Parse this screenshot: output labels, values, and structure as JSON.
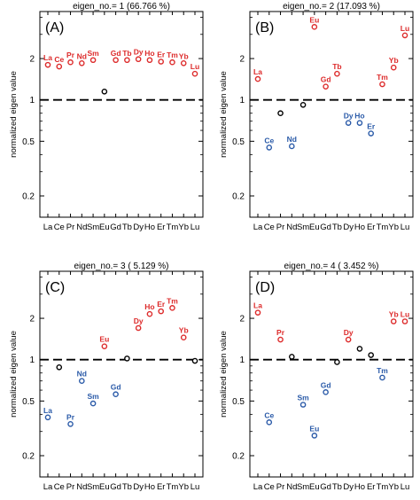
{
  "colors": {
    "positive": "#dd2b2b",
    "negative": "#2a5aa8",
    "near_one": "#000000",
    "axis": "#000000"
  },
  "shared_axis": {
    "xticks": [
      "La",
      "Ce",
      "Pr",
      "Nd",
      "Sm",
      "Eu",
      "Gd",
      "Tb",
      "Dy",
      "Ho",
      "Er",
      "Tm",
      "Yb",
      "Lu"
    ],
    "ylabel": "normalized eigen value",
    "yscale": "log",
    "ylim": [
      0.14,
      4.4
    ],
    "ytick_labels": [
      "0.2",
      "0.5",
      "1",
      "2"
    ],
    "ytick_values": [
      0.2,
      0.5,
      1,
      2
    ],
    "reference_line": 1
  },
  "chart_data": [
    {
      "type": "scatter",
      "panel_label": "(A)",
      "title": "eigen_no.= 1 (66.766 %)",
      "yscale": "log",
      "points": [
        {
          "x": "La",
          "y": 1.8,
          "label": "La",
          "color": "red"
        },
        {
          "x": "Ce",
          "y": 1.75,
          "label": "Ce",
          "color": "red"
        },
        {
          "x": "Pr",
          "y": 1.88,
          "label": "Pr",
          "color": "red"
        },
        {
          "x": "Nd",
          "y": 1.85,
          "label": "Nd",
          "color": "red"
        },
        {
          "x": "Sm",
          "y": 1.95,
          "label": "Sm",
          "color": "red"
        },
        {
          "x": "Eu",
          "y": 1.15,
          "label": "",
          "color": "black"
        },
        {
          "x": "Gd",
          "y": 1.95,
          "label": "Gd",
          "color": "red"
        },
        {
          "x": "Tb",
          "y": 1.95,
          "label": "Tb",
          "color": "red"
        },
        {
          "x": "Dy",
          "y": 1.98,
          "label": "Dy",
          "color": "red"
        },
        {
          "x": "Ho",
          "y": 1.95,
          "label": "Ho",
          "color": "red"
        },
        {
          "x": "Er",
          "y": 1.9,
          "label": "Er",
          "color": "red"
        },
        {
          "x": "Tm",
          "y": 1.88,
          "label": "Tm",
          "color": "red"
        },
        {
          "x": "Yb",
          "y": 1.85,
          "label": "Yb",
          "color": "red"
        },
        {
          "x": "Lu",
          "y": 1.55,
          "label": "Lu",
          "color": "red"
        }
      ]
    },
    {
      "type": "scatter",
      "panel_label": "(B)",
      "title": "eigen_no.= 2 (17.093 %)",
      "yscale": "log",
      "points": [
        {
          "x": "La",
          "y": 1.42,
          "label": "La",
          "color": "red"
        },
        {
          "x": "Ce",
          "y": 0.45,
          "label": "Ce",
          "color": "blue"
        },
        {
          "x": "Pr",
          "y": 0.8,
          "label": "",
          "color": "black"
        },
        {
          "x": "Nd",
          "y": 0.46,
          "label": "Nd",
          "color": "blue"
        },
        {
          "x": "Sm",
          "y": 0.92,
          "label": "",
          "color": "black"
        },
        {
          "x": "Eu",
          "y": 3.4,
          "label": "Eu",
          "color": "red"
        },
        {
          "x": "Gd",
          "y": 1.25,
          "label": "Gd",
          "color": "red"
        },
        {
          "x": "Tb",
          "y": 1.55,
          "label": "Tb",
          "color": "red"
        },
        {
          "x": "Dy",
          "y": 0.68,
          "label": "Dy",
          "color": "blue"
        },
        {
          "x": "Ho",
          "y": 0.68,
          "label": "Ho",
          "color": "blue"
        },
        {
          "x": "Er",
          "y": 0.57,
          "label": "Er",
          "color": "blue"
        },
        {
          "x": "Tm",
          "y": 1.3,
          "label": "Tm",
          "color": "red"
        },
        {
          "x": "Yb",
          "y": 1.72,
          "label": "Yb",
          "color": "red"
        },
        {
          "x": "Lu",
          "y": 2.95,
          "label": "Lu",
          "color": "red"
        }
      ]
    },
    {
      "type": "scatter",
      "panel_label": "(C)",
      "title": "eigen_no.= 3 ( 5.129 %)",
      "yscale": "log",
      "points": [
        {
          "x": "La",
          "y": 0.38,
          "label": "La",
          "color": "blue"
        },
        {
          "x": "Ce",
          "y": 0.88,
          "label": "",
          "color": "black"
        },
        {
          "x": "Pr",
          "y": 0.34,
          "label": "Pr",
          "color": "blue"
        },
        {
          "x": "Nd",
          "y": 0.7,
          "label": "Nd",
          "color": "blue"
        },
        {
          "x": "Sm",
          "y": 0.48,
          "label": "Sm",
          "color": "blue"
        },
        {
          "x": "Eu",
          "y": 1.25,
          "label": "Eu",
          "color": "red"
        },
        {
          "x": "Gd",
          "y": 0.56,
          "label": "Gd",
          "color": "blue"
        },
        {
          "x": "Tb",
          "y": 1.02,
          "label": "",
          "color": "black"
        },
        {
          "x": "Dy",
          "y": 1.7,
          "label": "Dy",
          "color": "red"
        },
        {
          "x": "Ho",
          "y": 2.15,
          "label": "Ho",
          "color": "red"
        },
        {
          "x": "Er",
          "y": 2.25,
          "label": "Er",
          "color": "red"
        },
        {
          "x": "Tm",
          "y": 2.38,
          "label": "Tm",
          "color": "red"
        },
        {
          "x": "Yb",
          "y": 1.45,
          "label": "Yb",
          "color": "red"
        },
        {
          "x": "Lu",
          "y": 0.98,
          "label": "",
          "color": "black"
        }
      ]
    },
    {
      "type": "scatter",
      "panel_label": "(D)",
      "title": "eigen_no.= 4 ( 3.452 %)",
      "yscale": "log",
      "points": [
        {
          "x": "La",
          "y": 2.2,
          "label": "La",
          "color": "red"
        },
        {
          "x": "Ce",
          "y": 0.35,
          "label": "Ce",
          "color": "blue"
        },
        {
          "x": "Pr",
          "y": 1.4,
          "label": "Pr",
          "color": "red"
        },
        {
          "x": "Nd",
          "y": 1.05,
          "label": "",
          "color": "black"
        },
        {
          "x": "Sm",
          "y": 0.47,
          "label": "Sm",
          "color": "blue"
        },
        {
          "x": "Eu",
          "y": 0.28,
          "label": "Eu",
          "color": "blue"
        },
        {
          "x": "Gd",
          "y": 0.58,
          "label": "Gd",
          "color": "blue"
        },
        {
          "x": "Tb",
          "y": 0.96,
          "label": "",
          "color": "black"
        },
        {
          "x": "Dy",
          "y": 1.4,
          "label": "Dy",
          "color": "red"
        },
        {
          "x": "Ho",
          "y": 1.2,
          "label": "",
          "color": "black"
        },
        {
          "x": "Er",
          "y": 1.08,
          "label": "",
          "color": "black"
        },
        {
          "x": "Tm",
          "y": 0.74,
          "label": "Tm",
          "color": "blue"
        },
        {
          "x": "Yb",
          "y": 1.9,
          "label": "Yb",
          "color": "red"
        },
        {
          "x": "Lu",
          "y": 1.9,
          "label": "Lu",
          "color": "red"
        }
      ]
    }
  ]
}
